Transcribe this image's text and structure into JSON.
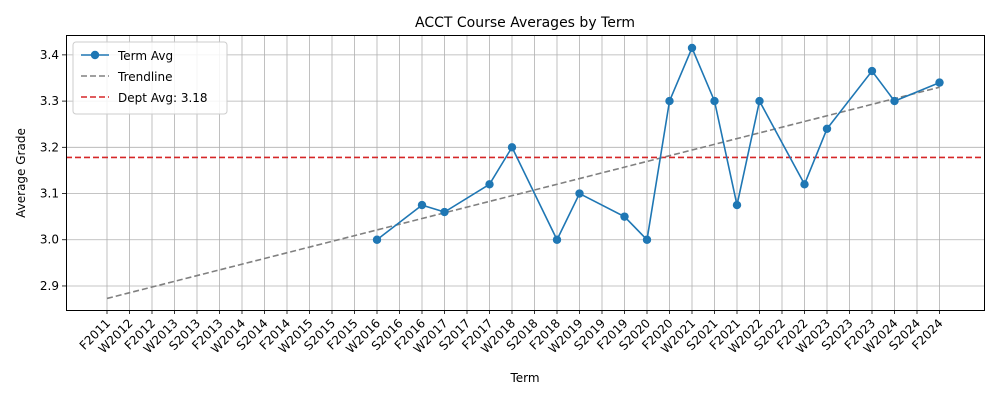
{
  "chart_data": {
    "type": "line",
    "title": "ACCT Course Averages by Term",
    "xlabel": "Term",
    "ylabel": "Average Grade",
    "categories": [
      "F2011",
      "W2012",
      "F2012",
      "W2013",
      "S2013",
      "F2013",
      "W2014",
      "S2014",
      "F2014",
      "W2015",
      "S2015",
      "F2015",
      "W2016",
      "S2016",
      "F2016",
      "W2017",
      "S2017",
      "F2017",
      "W2018",
      "S2018",
      "F2018",
      "W2019",
      "S2019",
      "F2019",
      "S2020",
      "F2020",
      "W2021",
      "S2021",
      "F2021",
      "W2022",
      "S2022",
      "F2022",
      "W2023",
      "S2023",
      "F2023",
      "W2024",
      "S2024",
      "F2024"
    ],
    "ylim": [
      2.848,
      3.443
    ],
    "yticks": [
      "2.9",
      "3.0",
      "3.1",
      "3.2",
      "3.3",
      "3.4"
    ],
    "ytick_values": [
      2.9,
      3.0,
      3.1,
      3.2,
      3.3,
      3.4
    ],
    "grid": true,
    "legend_position": "top-left",
    "series": [
      {
        "name": "Term Avg",
        "kind": "line-markers",
        "color": "#1f77b4",
        "points": [
          {
            "x": "W2016",
            "y": 3.0
          },
          {
            "x": "F2016",
            "y": 3.075
          },
          {
            "x": "W2017",
            "y": 3.06
          },
          {
            "x": "F2017",
            "y": 3.12
          },
          {
            "x": "W2018",
            "y": 3.2
          },
          {
            "x": "F2018",
            "y": 3.0
          },
          {
            "x": "W2019",
            "y": 3.1
          },
          {
            "x": "F2019",
            "y": 3.05
          },
          {
            "x": "S2020",
            "y": 3.0
          },
          {
            "x": "F2020",
            "y": 3.3
          },
          {
            "x": "W2021",
            "y": 3.415
          },
          {
            "x": "S2021",
            "y": 3.3
          },
          {
            "x": "F2021",
            "y": 3.075
          },
          {
            "x": "W2022",
            "y": 3.3
          },
          {
            "x": "F2022",
            "y": 3.12
          },
          {
            "x": "W2023",
            "y": 3.24
          },
          {
            "x": "F2023",
            "y": 3.365
          },
          {
            "x": "W2024",
            "y": 3.3
          },
          {
            "x": "F2024",
            "y": 3.34
          }
        ]
      },
      {
        "name": "Trendline",
        "kind": "dashed-line",
        "color": "#808080",
        "points": [
          {
            "x": "F2011",
            "y": 2.873
          },
          {
            "x": "F2024",
            "y": 3.33
          }
        ]
      },
      {
        "name": "Dept Avg: 3.18",
        "kind": "horizontal-line",
        "color": "#d62728",
        "y": 3.178
      }
    ]
  }
}
